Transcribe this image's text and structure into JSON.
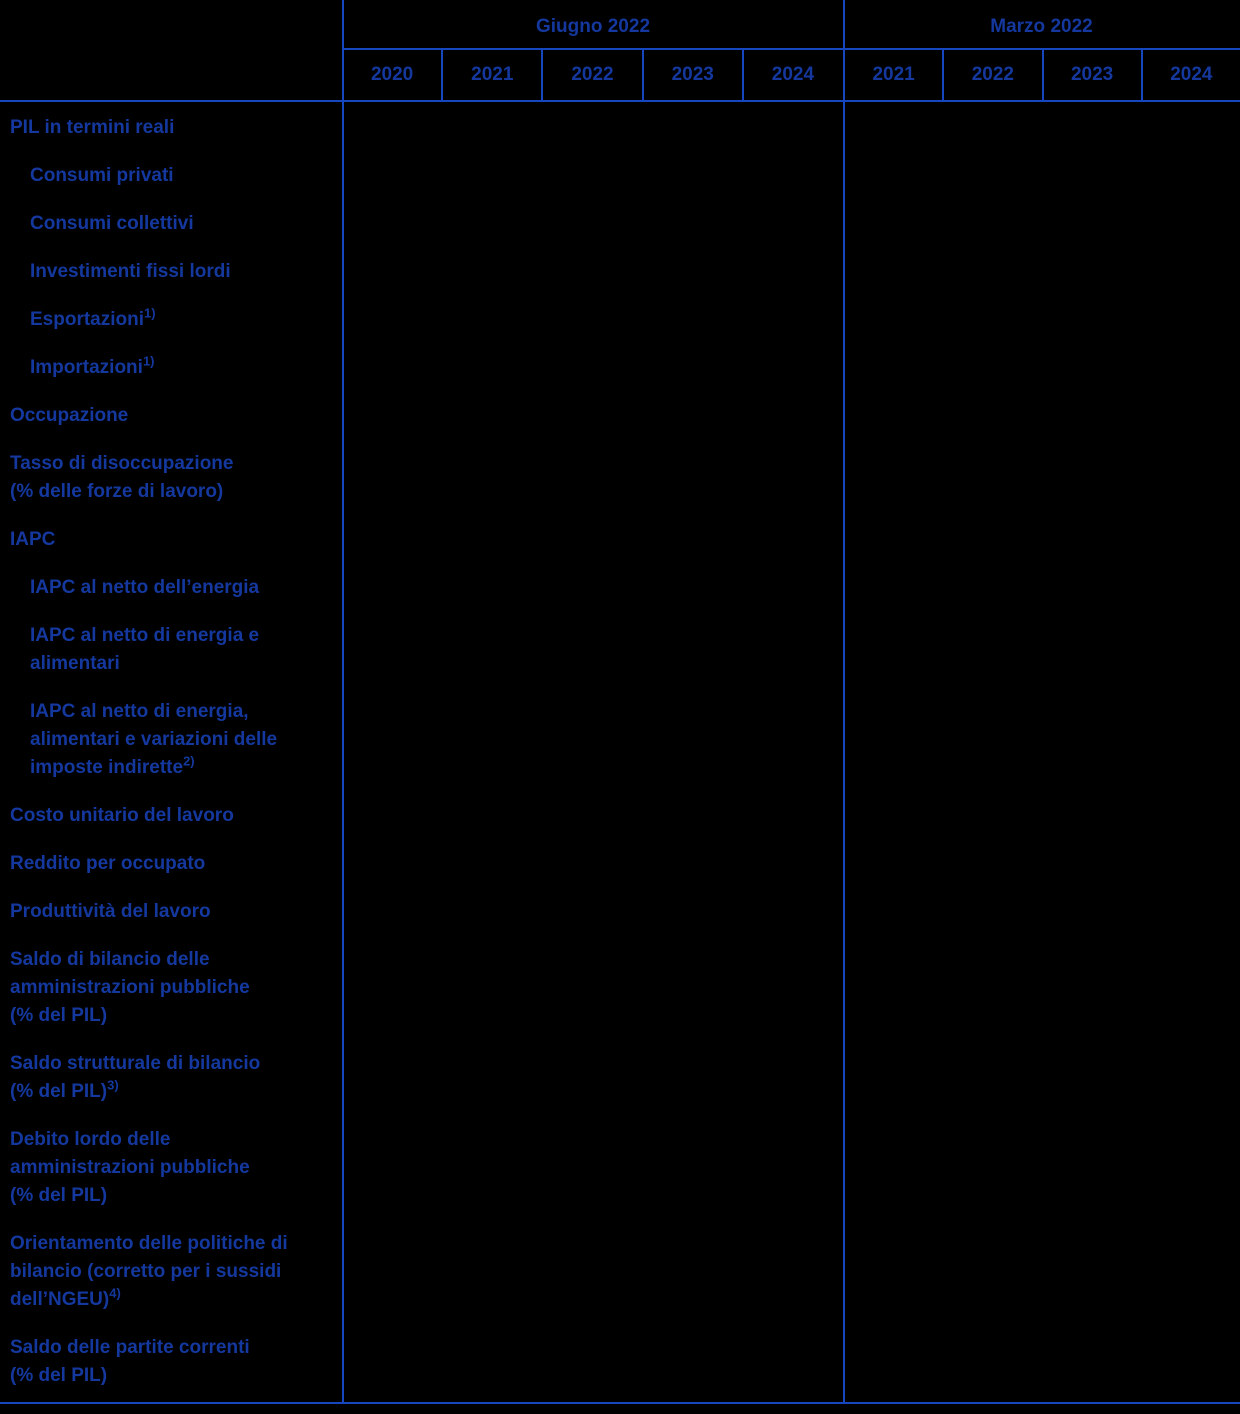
{
  "table": {
    "column_groups": [
      {
        "label": "Giugno 2022",
        "years": [
          "2020",
          "2021",
          "2022",
          "2023",
          "2024"
        ]
      },
      {
        "label": "Marzo 2022",
        "years": [
          "2021",
          "2022",
          "2023",
          "2024"
        ]
      }
    ],
    "rows": [
      {
        "indent": false,
        "sup": "",
        "label_lines": [
          "PIL in termini reali"
        ]
      },
      {
        "indent": true,
        "sup": "",
        "label_lines": [
          "Consumi privati"
        ]
      },
      {
        "indent": true,
        "sup": "",
        "label_lines": [
          "Consumi collettivi"
        ]
      },
      {
        "indent": true,
        "sup": "",
        "label_lines": [
          "Investimenti fissi lordi"
        ]
      },
      {
        "indent": true,
        "sup": "1)",
        "label_lines": [
          "Esportazioni"
        ]
      },
      {
        "indent": true,
        "sup": "1)",
        "label_lines": [
          "Importazioni"
        ]
      },
      {
        "indent": false,
        "sup": "",
        "label_lines": [
          "Occupazione"
        ]
      },
      {
        "indent": false,
        "sup": "",
        "label_lines": [
          "Tasso di disoccupazione",
          "(% delle forze di lavoro)"
        ]
      },
      {
        "indent": false,
        "sup": "",
        "label_lines": [
          "IAPC"
        ]
      },
      {
        "indent": true,
        "sup": "",
        "label_lines": [
          "IAPC al netto dell’energia"
        ]
      },
      {
        "indent": true,
        "sup": "",
        "label_lines": [
          "IAPC al netto di energia e",
          "alimentari"
        ]
      },
      {
        "indent": true,
        "sup": "2)",
        "label_lines": [
          "IAPC al netto di energia,",
          "alimentari e variazioni delle",
          "imposte indirette"
        ]
      },
      {
        "indent": false,
        "sup": "",
        "label_lines": [
          "Costo unitario del lavoro"
        ]
      },
      {
        "indent": false,
        "sup": "",
        "label_lines": [
          "Reddito per occupato"
        ]
      },
      {
        "indent": false,
        "sup": "",
        "label_lines": [
          "Produttività del lavoro"
        ]
      },
      {
        "indent": false,
        "sup": "",
        "label_lines": [
          "Saldo di bilancio delle",
          "amministrazioni pubbliche",
          "(% del PIL)"
        ]
      },
      {
        "indent": false,
        "sup": "3)",
        "label_lines": [
          "Saldo strutturale di bilancio",
          "(% del PIL)"
        ]
      },
      {
        "indent": false,
        "sup": "",
        "label_lines": [
          "Debito lordo delle",
          "amministrazioni pubbliche",
          "(% del PIL)"
        ]
      },
      {
        "indent": false,
        "sup": "4)",
        "label_lines": [
          "Orientamento delle politiche di",
          "bilancio (corretto per i sussidi",
          "dell’NGEU)"
        ]
      },
      {
        "indent": false,
        "sup": "",
        "label_lines": [
          "Saldo delle partite correnti",
          "(% del PIL)"
        ]
      }
    ],
    "data_cells_empty": true,
    "colors": {
      "background": "#000000",
      "text": "#14389E",
      "grid": "#1747BE"
    }
  }
}
